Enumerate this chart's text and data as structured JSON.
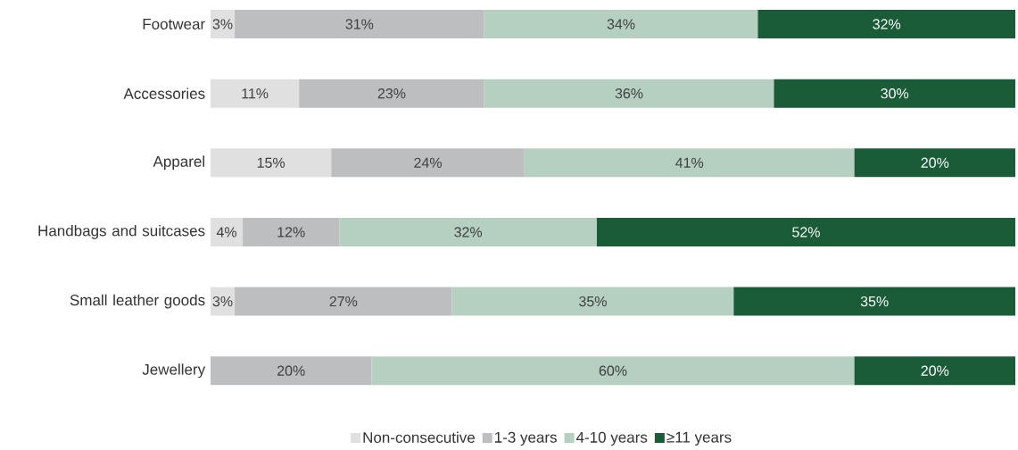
{
  "chart_data": {
    "type": "bar",
    "orientation": "horizontal",
    "stacked": true,
    "xlim": [
      0,
      100
    ],
    "legend": "bottom",
    "categories": [
      "Footwear",
      "Accessories",
      "Apparel",
      "Handbags and suitcases",
      "Small leather goods",
      "Jewellery"
    ],
    "series": [
      {
        "name": "Non-consecutive",
        "color": "#e0e0e0",
        "values": [
          3,
          11,
          15,
          4,
          3,
          null
        ],
        "value_labels": [
          "3%",
          "11%",
          "15%",
          "4%",
          "3%",
          null
        ]
      },
      {
        "name": "1-3 years",
        "color": "#bcbec0",
        "values": [
          31,
          23,
          24,
          12,
          27,
          20
        ],
        "value_labels": [
          "31%",
          "23%",
          "24%",
          "12%",
          "27%",
          "20%"
        ]
      },
      {
        "name": "4-10 years",
        "color": "#b5cfc0",
        "values": [
          34,
          36,
          41,
          32,
          35,
          60
        ],
        "value_labels": [
          "34%",
          "36%",
          "41%",
          "32%",
          "35%",
          "60%"
        ]
      },
      {
        "name": "≥11 years",
        "color": "#1a5c38",
        "values": [
          32,
          30,
          20,
          52,
          35,
          20
        ],
        "value_labels": [
          "32%",
          "30%",
          "20%",
          "52%",
          "35%",
          "20%"
        ]
      }
    ]
  }
}
